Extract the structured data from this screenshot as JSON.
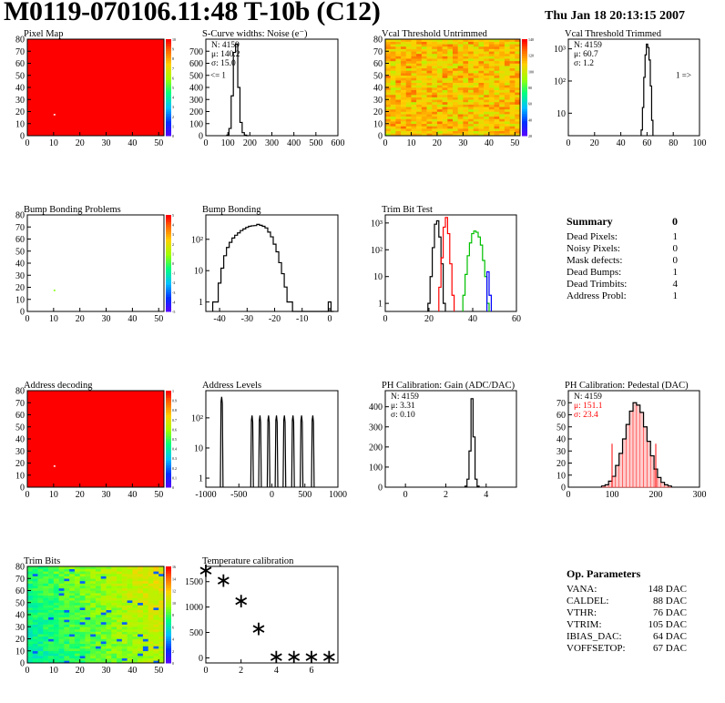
{
  "header": {
    "title": "M0119-070106.11:48 T-10b (C12)",
    "date": "Thu Jan 18 20:13:15 2007"
  },
  "colors": {
    "line": "#000000",
    "red": "#ff0000",
    "green": "#00c000",
    "blue": "#0000ff",
    "map_fill": "#ff0000"
  },
  "chart_data": [
    {
      "id": "pixel-map",
      "type": "heatmap",
      "title": "Pixel Map",
      "xlim": [
        0,
        52
      ],
      "ylim": [
        0,
        80
      ],
      "xticks": [
        "0",
        "10",
        "20",
        "30",
        "40",
        "50"
      ],
      "yticks": [
        "0",
        "10",
        "20",
        "30",
        "40",
        "50",
        "60",
        "70",
        "80"
      ],
      "zticks": [
        "10",
        "9",
        "8",
        "7",
        "6",
        "5",
        "4",
        "3",
        "2",
        "1",
        "0"
      ],
      "fill_color": "#ff0000",
      "special_pixels": [
        {
          "x": 10,
          "y": 18
        }
      ]
    },
    {
      "id": "scurve-widths",
      "type": "histogram",
      "title": "S-Curve widths: Noise (e⁻)",
      "xlim": [
        0,
        600
      ],
      "ylim": [
        0,
        800
      ],
      "yscale": "linear",
      "xticks": [
        "0",
        "100",
        "200",
        "300",
        "400",
        "500",
        "600"
      ],
      "yticks": [
        "0",
        "100",
        "200",
        "300",
        "400",
        "500",
        "600",
        "700"
      ],
      "stats": {
        "N": "4159",
        "mean": "140.2",
        "sigma": "15.0"
      },
      "annotation": "<= 1",
      "series": [
        {
          "color": "#000000",
          "x": [
            100,
            110,
            120,
            130,
            140,
            150,
            160,
            170,
            180,
            190
          ],
          "y": [
            5,
            60,
            330,
            690,
            760,
            400,
            110,
            25,
            5,
            0
          ]
        }
      ]
    },
    {
      "id": "vcal-untrimmed",
      "type": "heatmap",
      "title": "Vcal Threshold Untrimmed",
      "xlim": [
        0,
        52
      ],
      "ylim": [
        0,
        80
      ],
      "xticks": [
        "0",
        "10",
        "20",
        "30",
        "40",
        "50"
      ],
      "yticks": [
        "0",
        "10",
        "20",
        "30",
        "40",
        "50",
        "60",
        "70",
        "80"
      ],
      "zticks": [
        "140",
        "120",
        "100",
        "80",
        "60",
        "40",
        "20"
      ]
    },
    {
      "id": "vcal-trimmed",
      "type": "histogram",
      "title": "Vcal Threshold Trimmed",
      "xlim": [
        0,
        100
      ],
      "ylim": [
        2,
        2000
      ],
      "yscale": "log",
      "xticks": [
        "0",
        "20",
        "40",
        "60",
        "80",
        "100"
      ],
      "yticks": [
        "10",
        "10²",
        "10³"
      ],
      "stats": {
        "N": "4159",
        "mean": "60.7",
        "sigma": "1.2"
      },
      "annotation": "1 =>",
      "series": [
        {
          "color": "#000000",
          "x": [
            56,
            57,
            58,
            59,
            60,
            61,
            62,
            63,
            64
          ],
          "y": [
            3,
            15,
            130,
            650,
            1400,
            1100,
            450,
            70,
            6
          ]
        }
      ]
    },
    {
      "id": "bump-problems",
      "type": "heatmap",
      "title": "Bump Bonding Problems",
      "xlim": [
        0,
        52
      ],
      "ylim": [
        0,
        80
      ],
      "xticks": [
        "0",
        "10",
        "20",
        "30",
        "40",
        "50"
      ],
      "yticks": [
        "0",
        "10",
        "20",
        "30",
        "40",
        "50",
        "60",
        "70",
        "80"
      ],
      "zticks": [
        "5",
        "4",
        "3",
        "2",
        "1",
        "0",
        "-1",
        "-2",
        "-3",
        "-4",
        "-5"
      ],
      "fill_color": "#ffffff",
      "special_pixels": [
        {
          "x": 10,
          "y": 18
        }
      ]
    },
    {
      "id": "bump-bonding",
      "type": "histogram",
      "title": "Bump Bonding",
      "xlim": [
        -45,
        3
      ],
      "ylim": [
        0.5,
        600
      ],
      "yscale": "log",
      "xticks": [
        "-40",
        "-30",
        "-20",
        "-10",
        "0"
      ],
      "yticks": [
        "1",
        "10",
        "10²"
      ],
      "series": [
        {
          "color": "#000000",
          "x": [
            -42,
            -41,
            -40,
            -39,
            -38,
            -37,
            -36,
            -35,
            -34,
            -33,
            -32,
            -31,
            -30,
            -29,
            -28,
            -27,
            -26,
            -25,
            -24,
            -23,
            -22,
            -21,
            -20,
            -19,
            -18,
            -17,
            -16,
            -15,
            -14,
            -13,
            -12,
            -11,
            -10,
            -9,
            -8,
            -7,
            -6,
            -5,
            -4,
            -3,
            -2,
            -1,
            0,
            1
          ],
          "y": [
            1,
            1,
            4,
            12,
            30,
            55,
            80,
            110,
            135,
            160,
            190,
            215,
            240,
            260,
            270,
            275,
            300,
            280,
            260,
            230,
            170,
            120,
            70,
            40,
            18,
            8,
            3,
            1,
            1,
            0,
            0,
            0,
            0,
            0,
            0,
            0,
            0,
            0,
            0,
            0,
            0,
            0,
            1,
            0
          ]
        }
      ]
    },
    {
      "id": "trim-bit-test",
      "type": "histogram",
      "title": "Trim Bit Test",
      "xlim": [
        0,
        60
      ],
      "ylim": [
        0.5,
        2000
      ],
      "yscale": "log",
      "xticks": [
        "0",
        "20",
        "40",
        "60"
      ],
      "yticks": [
        "1",
        "10",
        "10²",
        "10³"
      ],
      "series": [
        {
          "color": "#000000",
          "x": [
            20,
            21,
            22,
            23,
            24,
            25,
            26,
            27
          ],
          "y": [
            1,
            10,
            120,
            900,
            1200,
            300,
            30,
            1
          ]
        },
        {
          "color": "#ff0000",
          "x": [
            25,
            26,
            27,
            28,
            29,
            30,
            31
          ],
          "y": [
            4,
            50,
            700,
            1600,
            400,
            30,
            2
          ]
        },
        {
          "color": "#00c000",
          "x": [
            36,
            37,
            38,
            39,
            40,
            41,
            42,
            43,
            44,
            45,
            46,
            47
          ],
          "y": [
            2,
            12,
            60,
            180,
            400,
            500,
            450,
            300,
            150,
            40,
            10,
            1
          ]
        },
        {
          "color": "#0000ff",
          "x": [
            47,
            48
          ],
          "y": [
            15,
            2
          ]
        }
      ]
    },
    {
      "id": "address-decoding",
      "type": "heatmap",
      "title": "Address decoding",
      "xlim": [
        0,
        52
      ],
      "ylim": [
        0,
        80
      ],
      "xticks": [
        "0",
        "10",
        "20",
        "30",
        "40",
        "50"
      ],
      "yticks": [
        "0",
        "10",
        "20",
        "30",
        "40",
        "50",
        "60",
        "70",
        "80"
      ],
      "zticks": [
        "1",
        "0.9",
        "0.8",
        "0.7",
        "0.6",
        "0.5",
        "0.4",
        "0.3",
        "0.2",
        "0.1",
        "0"
      ],
      "fill_color": "#ff0000",
      "special_pixels": [
        {
          "x": 10,
          "y": 18
        }
      ]
    },
    {
      "id": "address-levels",
      "type": "histogram",
      "title": "Address Levels",
      "xlim": [
        -1000,
        1000
      ],
      "ylim": [
        0.5,
        800
      ],
      "yscale": "log",
      "xticks": [
        "-1000",
        "-500",
        "0",
        "500",
        "1000"
      ],
      "yticks": [
        "1",
        "10",
        "10²"
      ],
      "peaks": [
        -760,
        -300,
        -180,
        -50,
        70,
        190,
        320,
        450,
        620
      ]
    },
    {
      "id": "ph-gain",
      "type": "histogram",
      "title": "PH Calibration: Gain (ADC/DAC)",
      "xlim": [
        -1,
        5.5
      ],
      "ylim": [
        0,
        480
      ],
      "yscale": "linear",
      "xticks": [
        "0",
        "2",
        "4"
      ],
      "yticks": [
        "0",
        "100",
        "200",
        "300",
        "400"
      ],
      "stats": {
        "N": "4159",
        "mean": "3.31",
        "sigma": "0.10"
      },
      "series": [
        {
          "color": "#000000",
          "x": [
            3.0,
            3.1,
            3.2,
            3.3,
            3.4,
            3.5,
            3.6
          ],
          "y": [
            5,
            40,
            180,
            440,
            250,
            40,
            5
          ]
        }
      ]
    },
    {
      "id": "ph-pedestal",
      "type": "histogram",
      "title": "PH Calibration: Pedestal (DAC)",
      "xlim": [
        0,
        300
      ],
      "ylim": [
        0,
        80
      ],
      "yscale": "linear",
      "xticks": [
        "0",
        "100",
        "200",
        "300"
      ],
      "yticks": [
        "0",
        "10",
        "20",
        "30",
        "40",
        "50",
        "60",
        "70"
      ],
      "stats": {
        "N": "4159",
        "mean": "151.1",
        "sigma": "23.4"
      },
      "stats_color": "#ff0000",
      "markers": [
        100,
        200
      ],
      "series": [
        {
          "color": "#000000",
          "x": [
            80,
            88,
            96,
            104,
            112,
            120,
            128,
            136,
            144,
            152,
            160,
            168,
            176,
            184,
            192,
            200,
            208,
            216,
            224,
            232
          ],
          "y": [
            1,
            2,
            5,
            9,
            18,
            28,
            40,
            52,
            63,
            70,
            68,
            62,
            50,
            38,
            26,
            15,
            8,
            4,
            2,
            1
          ]
        }
      ]
    },
    {
      "id": "trim-bits",
      "type": "heatmap",
      "title": "Trim Bits",
      "xlim": [
        0,
        52
      ],
      "ylim": [
        0,
        80
      ],
      "xticks": [
        "0",
        "10",
        "20",
        "30",
        "40",
        "50"
      ],
      "yticks": [
        "0",
        "10",
        "20",
        "30",
        "40",
        "50",
        "60",
        "70",
        "80"
      ],
      "zticks": [
        "16",
        "14",
        "12",
        "10",
        "8",
        "6",
        "4",
        "2",
        "0"
      ]
    },
    {
      "id": "temperature-calibration",
      "type": "scatter",
      "title": "Temperature calibration",
      "xlim": [
        0,
        7.5
      ],
      "ylim": [
        -100,
        1800
      ],
      "yscale": "linear",
      "xticks": [
        "0",
        "2",
        "4",
        "6"
      ],
      "yticks": [
        "0",
        "500",
        "1000",
        "1500"
      ],
      "x": [
        0,
        1,
        2,
        3,
        4,
        5,
        6,
        7
      ],
      "y": [
        1700,
        1500,
        1100,
        550,
        0,
        0,
        0,
        0
      ]
    }
  ],
  "summary": {
    "title": "Summary",
    "value": "0",
    "rows": [
      {
        "label": "Dead Pixels:",
        "value": "1"
      },
      {
        "label": "Noisy Pixels:",
        "value": "0"
      },
      {
        "label": "Mask defects:",
        "value": "0"
      },
      {
        "label": "Dead Bumps:",
        "value": "1"
      },
      {
        "label": "Dead Trimbits:",
        "value": "4"
      },
      {
        "label": "Address Probl:",
        "value": "1"
      }
    ]
  },
  "op_parameters": {
    "title": "Op. Parameters",
    "rows": [
      {
        "label": "VANA:",
        "value": "148 DAC"
      },
      {
        "label": "CALDEL:",
        "value": "88 DAC"
      },
      {
        "label": "VTHR:",
        "value": "76 DAC"
      },
      {
        "label": "VTRIM:",
        "value": "105 DAC"
      },
      {
        "label": "IBIAS_DAC:",
        "value": "64 DAC"
      },
      {
        "label": "VOFFSETOP:",
        "value": "67 DAC"
      }
    ]
  }
}
